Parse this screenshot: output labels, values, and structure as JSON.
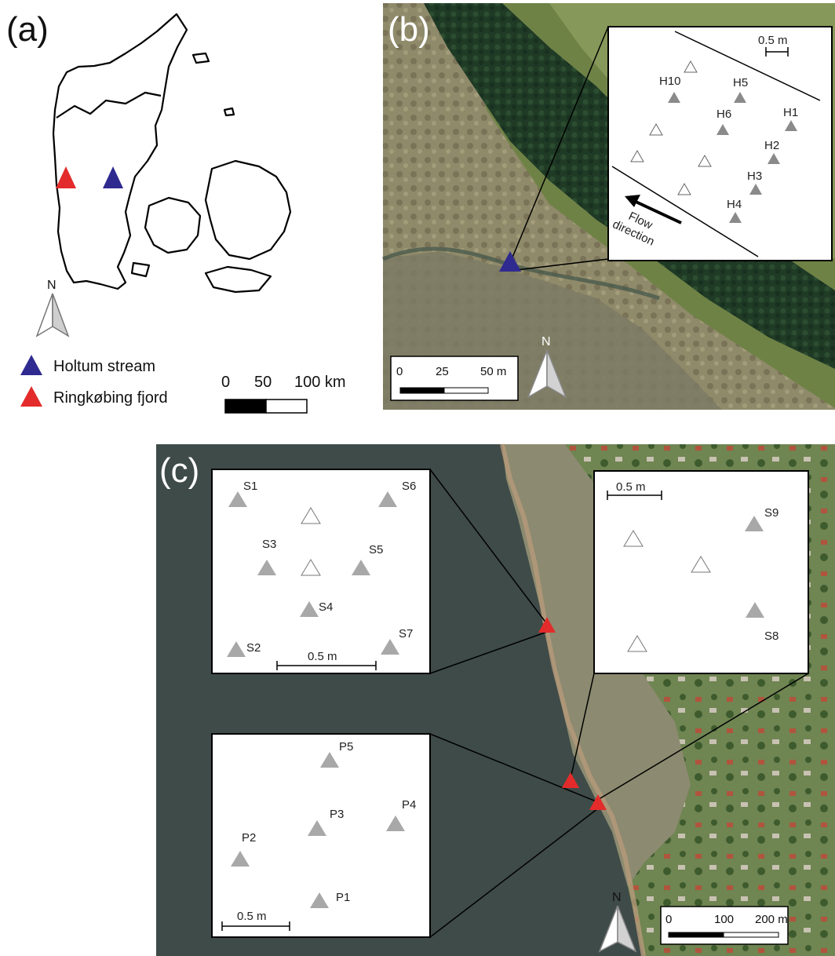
{
  "panels": {
    "a": {
      "letter": "(a)",
      "legend": [
        {
          "name": "Holtum stream",
          "color": "#2f2a8f"
        },
        {
          "name": "Ringkøbing fjord",
          "color": "#e32b2b"
        }
      ],
      "scale": {
        "t0": "0",
        "t1": "50",
        "t2": "100 km"
      },
      "north": "N"
    },
    "b": {
      "letter": "(b)",
      "inset_scale": "0.5 m",
      "flow_line1": "Flow",
      "flow_line2": "direction",
      "labels": [
        "H10",
        "H5",
        "H6",
        "H1",
        "H2",
        "H3",
        "H4"
      ],
      "scale": {
        "t0": "0",
        "t1": "25",
        "t2": "50 m"
      },
      "north": "N"
    },
    "c": {
      "letter": "(c)",
      "inset_s_labels": [
        "S1",
        "S6",
        "S3",
        "S5",
        "S4",
        "S2",
        "S7"
      ],
      "inset_s_scale": "0.5 m",
      "inset_s2_scale": "0.5 m",
      "inset_s2_labels": [
        "S9",
        "S8"
      ],
      "inset_p_labels": [
        "P5",
        "P4",
        "P3",
        "P2",
        "P1"
      ],
      "inset_p_scale": "0.5 m",
      "scale": {
        "t0": "0",
        "t1": "100",
        "t2": "200 m"
      },
      "north": "N"
    }
  },
  "colors": {
    "holtum": "#2f2a8f",
    "ringkobing": "#e32b2b",
    "sensor_gray": "#9a9a9a",
    "water": "#3f4b48"
  }
}
